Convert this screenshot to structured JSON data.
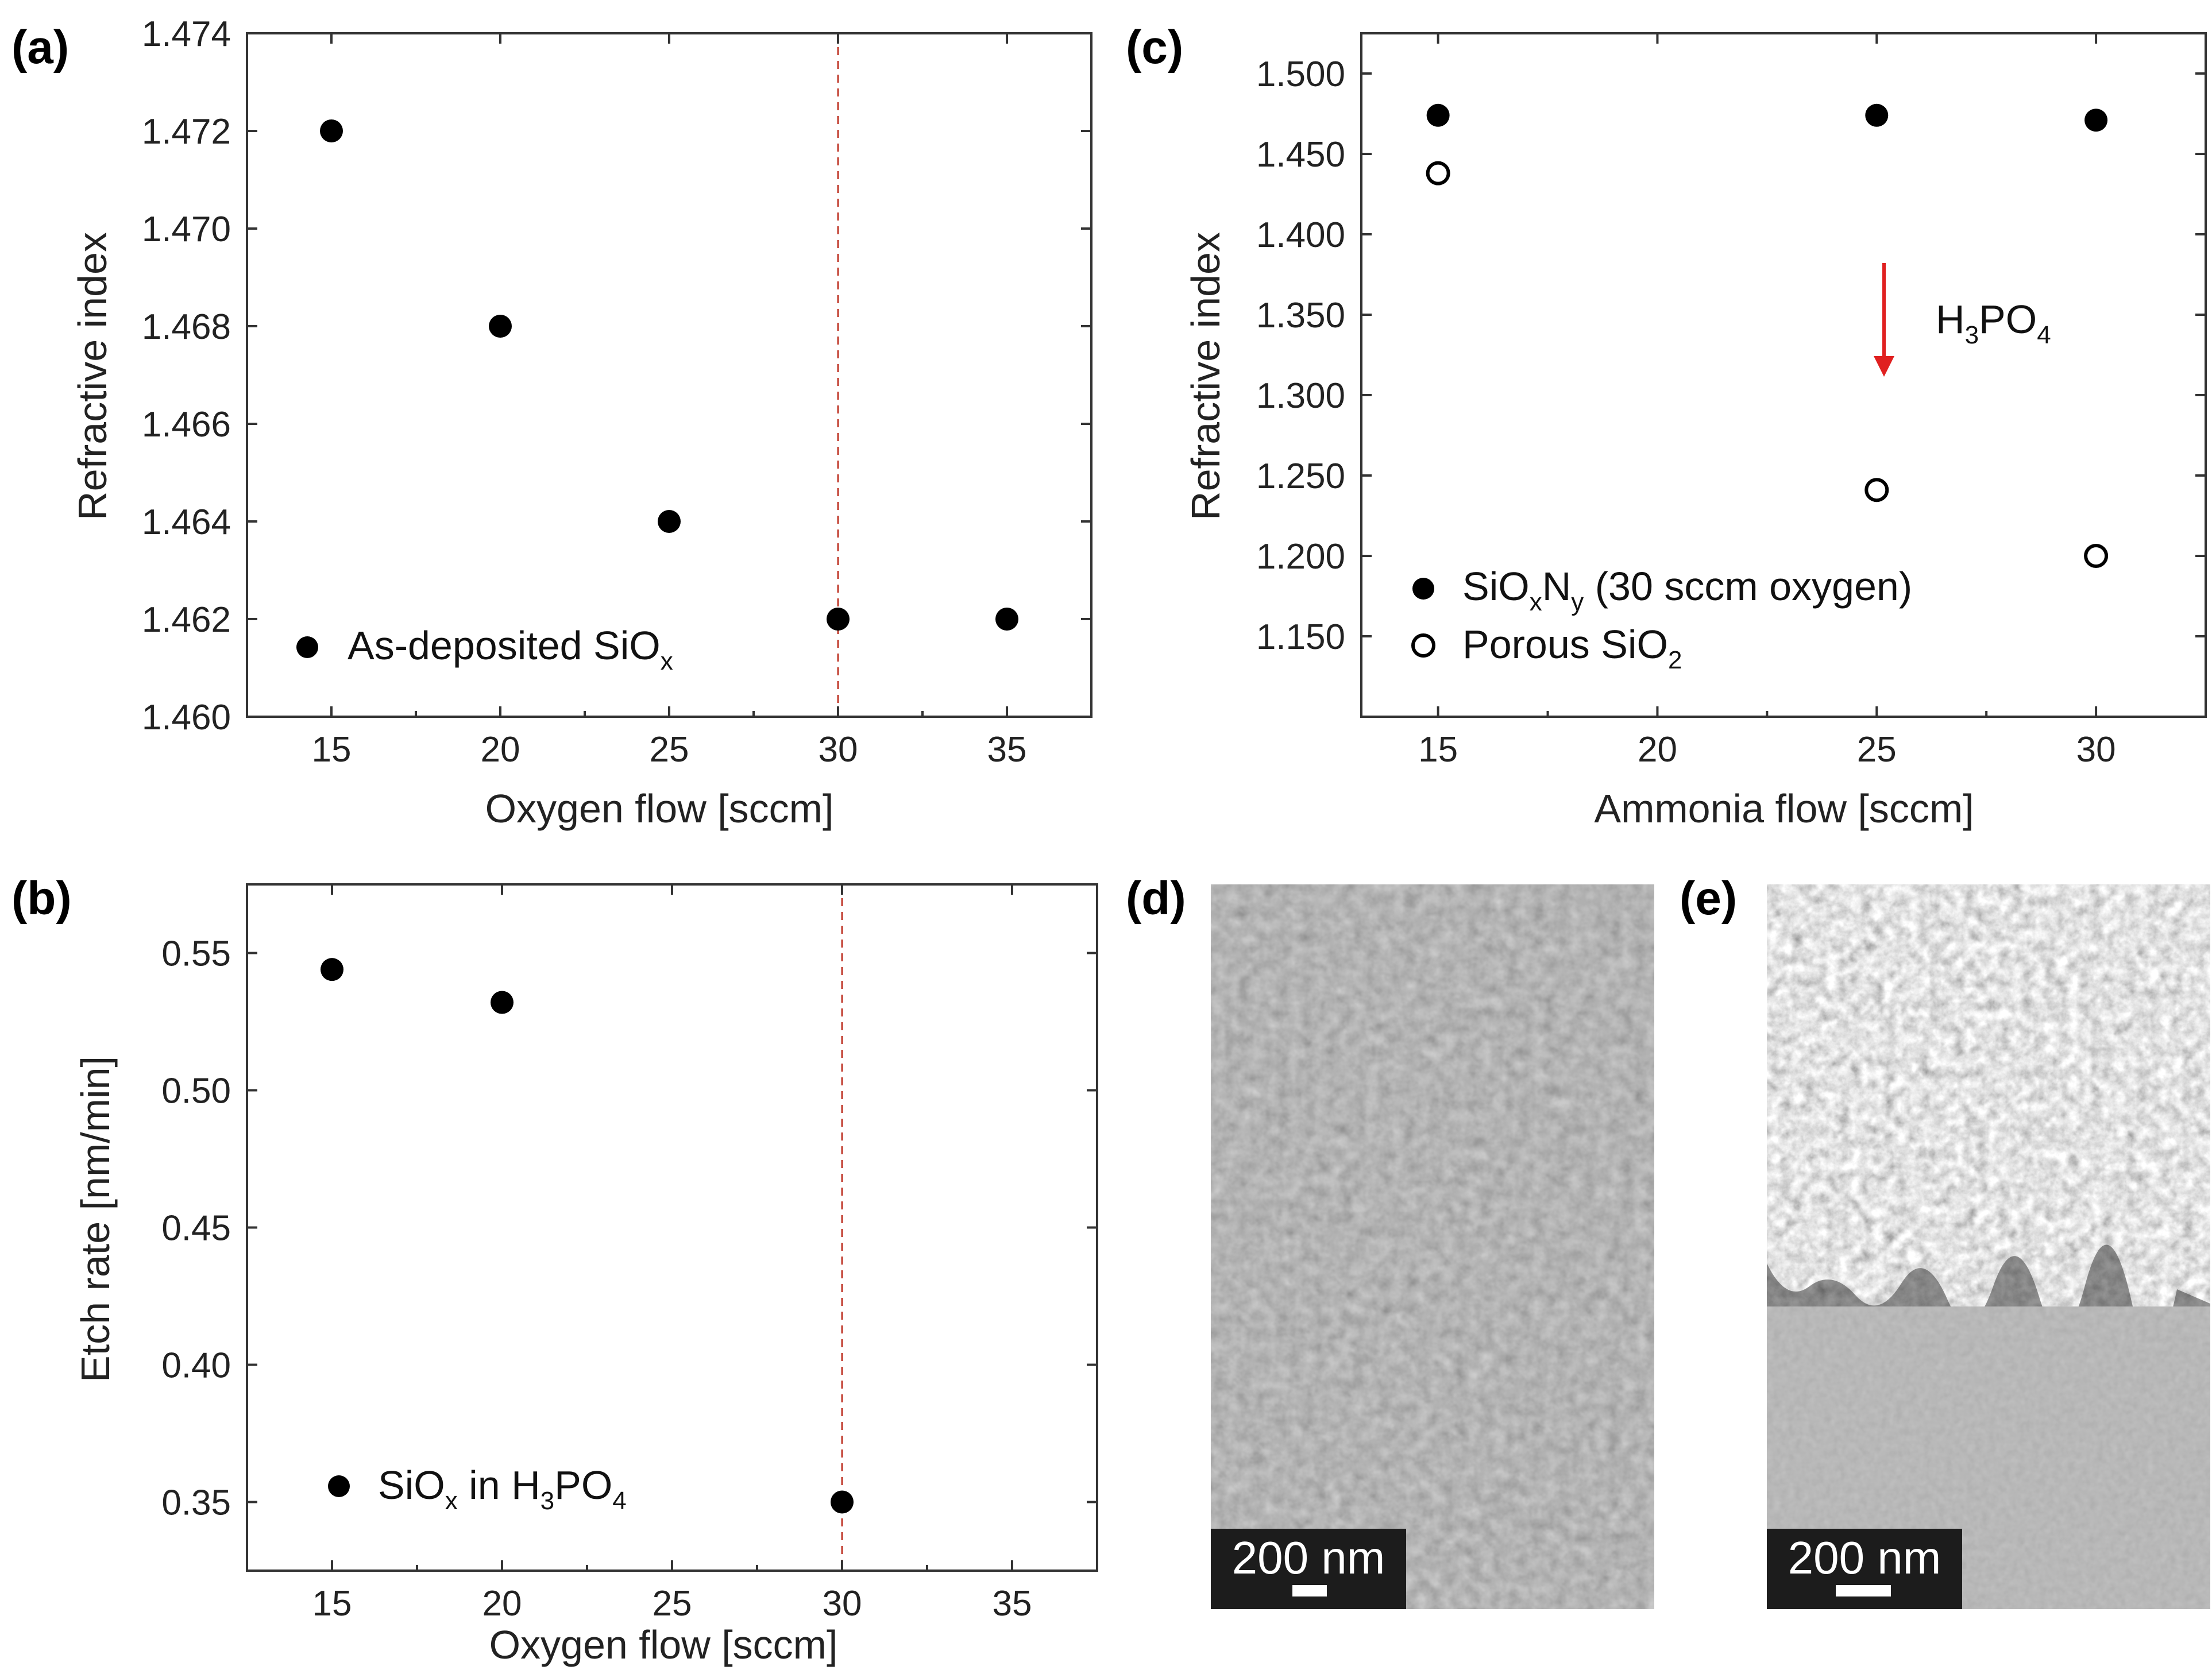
{
  "chart_data": [
    {
      "panel": "(a)",
      "type": "scatter",
      "xlabel": "Oxygen flow [sccm]",
      "ylabel": "Refractive index",
      "xlim": [
        12.5,
        37.5
      ],
      "ylim": [
        1.46,
        1.474
      ],
      "xticks": [
        15,
        20,
        25,
        30,
        35
      ],
      "yticks": [
        "1.460",
        "1.462",
        "1.464",
        "1.466",
        "1.468",
        "1.470",
        "1.472",
        "1.474"
      ],
      "vline": 30,
      "series": [
        {
          "name": "As-deposited SiOx",
          "legend_main": "As-deposited SiO",
          "legend_sub": "x",
          "marker": "filled",
          "x": [
            15,
            20,
            25,
            30,
            35
          ],
          "y": [
            1.472,
            1.468,
            1.464,
            1.462,
            1.462
          ]
        }
      ]
    },
    {
      "panel": "(b)",
      "type": "scatter",
      "xlabel": "Oxygen flow [sccm]",
      "ylabel": "Etch rate [nm/min]",
      "xlim": [
        12.5,
        37.5
      ],
      "ylim": [
        0.325,
        0.575
      ],
      "xticks": [
        15,
        20,
        25,
        30,
        35
      ],
      "yticks": [
        "0.35",
        "0.40",
        "0.45",
        "0.50",
        "0.55"
      ],
      "vline": 30,
      "series": [
        {
          "name": "SiOx in H3PO4",
          "legend_parts": [
            "SiO",
            "x",
            " in H",
            "3",
            "PO",
            "4"
          ],
          "marker": "filled",
          "x": [
            15,
            20,
            30
          ],
          "y": [
            0.544,
            0.532,
            0.35
          ]
        }
      ]
    },
    {
      "panel": "(c)",
      "type": "scatter",
      "xlabel": "Ammonia flow [sccm]",
      "ylabel": "Refractive index",
      "xlim": [
        13.25,
        32.5
      ],
      "ylim": [
        1.1,
        1.525
      ],
      "xticks": [
        15,
        20,
        25,
        30
      ],
      "yticks": [
        "1.150",
        "1.200",
        "1.250",
        "1.300",
        "1.350",
        "1.400",
        "1.450",
        "1.500"
      ],
      "series": [
        {
          "name": "SiOxNy (30 sccm oxygen)",
          "legend_parts": [
            "SiO",
            "x",
            "N",
            "y",
            " (30 sccm oxygen)"
          ],
          "marker": "filled",
          "x": [
            15,
            25,
            30
          ],
          "y": [
            1.474,
            1.474,
            1.471
          ]
        },
        {
          "name": "Porous SiO2",
          "legend_parts": [
            "Porous SiO",
            "2"
          ],
          "marker": "open",
          "x": [
            15,
            25,
            30
          ],
          "y": [
            1.438,
            1.241,
            1.2
          ]
        }
      ],
      "annotation": {
        "parts": [
          "H",
          "3",
          "PO",
          "4"
        ],
        "arrow_color": "#e02020"
      }
    }
  ],
  "images": [
    {
      "panel": "(d)",
      "scale_bar": "200 nm"
    },
    {
      "panel": "(e)",
      "scale_bar": "200 nm"
    }
  ]
}
